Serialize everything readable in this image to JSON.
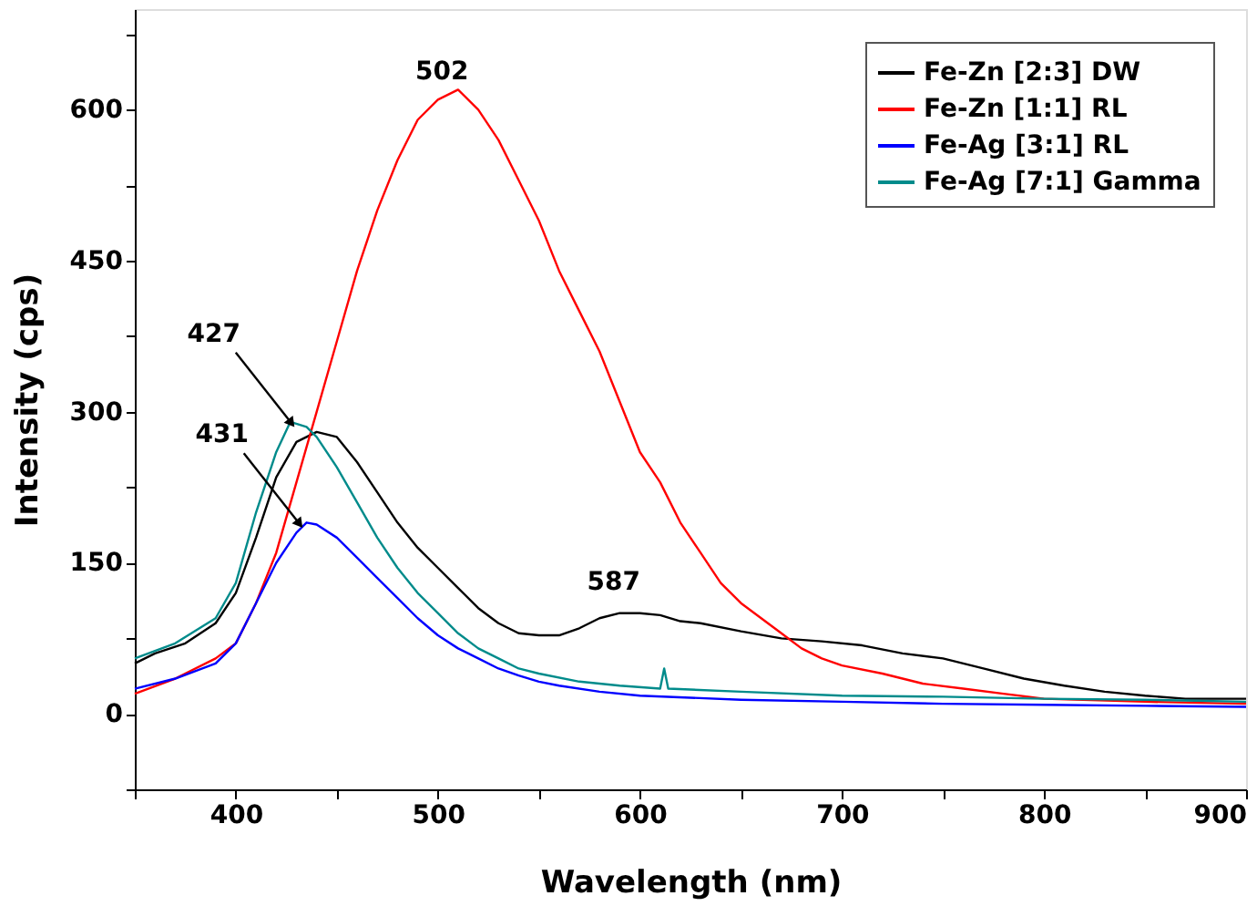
{
  "chart_data": {
    "type": "line",
    "xlabel": "Wavelength (nm)",
    "ylabel": "Intensity (cps)",
    "xlim": [
      350,
      900
    ],
    "ylim": [
      -75,
      700
    ],
    "xticks": [
      {
        "value": 350,
        "label": null
      },
      400,
      {
        "value": 450,
        "label": null
      },
      500,
      {
        "value": 550,
        "label": null
      },
      600,
      {
        "value": 650,
        "label": null
      },
      700,
      {
        "value": 750,
        "label": null
      },
      800,
      {
        "value": 850,
        "label": null
      },
      900
    ],
    "yticks": [
      {
        "value": -75,
        "label": null
      },
      0,
      {
        "value": 75,
        "label": null
      },
      150,
      {
        "value": 225,
        "label": null
      },
      300,
      {
        "value": 375,
        "label": null
      },
      450,
      {
        "value": 525,
        "label": null
      },
      600,
      {
        "value": 675,
        "label": null
      }
    ],
    "grid": false,
    "legend": "top right",
    "marker": "none",
    "line_style": "solid",
    "series": [
      {
        "name": "Fe-Zn [2:3] DW",
        "color": "#000000",
        "x": [
          350,
          360,
          375,
          390,
          400,
          410,
          420,
          430,
          440,
          450,
          460,
          470,
          480,
          490,
          500,
          510,
          520,
          530,
          540,
          550,
          560,
          570,
          580,
          590,
          600,
          610,
          620,
          630,
          650,
          670,
          690,
          710,
          730,
          750,
          770,
          790,
          810,
          830,
          850,
          870,
          900
        ],
        "values": [
          50,
          60,
          70,
          90,
          120,
          175,
          235,
          270,
          280,
          275,
          250,
          220,
          190,
          165,
          145,
          125,
          105,
          90,
          80,
          78,
          78,
          85,
          95,
          100,
          100,
          98,
          92,
          90,
          82,
          75,
          72,
          68,
          60,
          55,
          45,
          35,
          28,
          22,
          18,
          15,
          15
        ]
      },
      {
        "name": "Fe-Zn [1:1] RL",
        "color": "#ff0000",
        "x": [
          350,
          370,
          390,
          400,
          410,
          420,
          430,
          440,
          450,
          460,
          470,
          480,
          490,
          500,
          510,
          520,
          530,
          540,
          550,
          560,
          570,
          580,
          590,
          600,
          610,
          620,
          630,
          640,
          650,
          660,
          670,
          680,
          690,
          700,
          720,
          740,
          760,
          780,
          800,
          850,
          900
        ],
        "values": [
          20,
          35,
          55,
          70,
          110,
          160,
          230,
          300,
          370,
          440,
          500,
          550,
          590,
          610,
          620,
          600,
          570,
          530,
          490,
          440,
          400,
          360,
          310,
          260,
          230,
          190,
          160,
          130,
          110,
          95,
          80,
          65,
          55,
          48,
          40,
          30,
          25,
          20,
          15,
          12,
          10
        ]
      },
      {
        "name": "Fe-Ag [3:1] RL",
        "color": "#0000ff",
        "x": [
          350,
          370,
          390,
          400,
          410,
          420,
          430,
          435,
          440,
          450,
          460,
          470,
          480,
          490,
          500,
          510,
          520,
          530,
          540,
          550,
          560,
          580,
          600,
          650,
          700,
          750,
          800,
          850,
          900
        ],
        "values": [
          25,
          35,
          50,
          70,
          110,
          150,
          180,
          190,
          188,
          175,
          155,
          135,
          115,
          95,
          78,
          65,
          55,
          45,
          38,
          32,
          28,
          22,
          18,
          14,
          12,
          10,
          9,
          8,
          7
        ]
      },
      {
        "name": "Fe-Ag [7:1] Gamma",
        "color": "#008b8b",
        "x": [
          350,
          370,
          390,
          400,
          410,
          420,
          427,
          435,
          440,
          450,
          460,
          470,
          480,
          490,
          500,
          510,
          520,
          530,
          540,
          550,
          570,
          590,
          610,
          612,
          614,
          650,
          700,
          750,
          800,
          850,
          900
        ],
        "values": [
          55,
          70,
          95,
          130,
          200,
          260,
          290,
          285,
          275,
          245,
          210,
          175,
          145,
          120,
          100,
          80,
          65,
          55,
          45,
          40,
          32,
          28,
          25,
          45,
          25,
          22,
          18,
          17,
          15,
          14,
          12
        ]
      }
    ],
    "annotations": [
      {
        "text": "502",
        "x": 502,
        "y": 612
      },
      {
        "text": "427",
        "x": 427,
        "y": 290
      },
      {
        "text": "431",
        "x": 431,
        "y": 190
      },
      {
        "text": "587",
        "x": 587,
        "y": 105
      }
    ]
  }
}
